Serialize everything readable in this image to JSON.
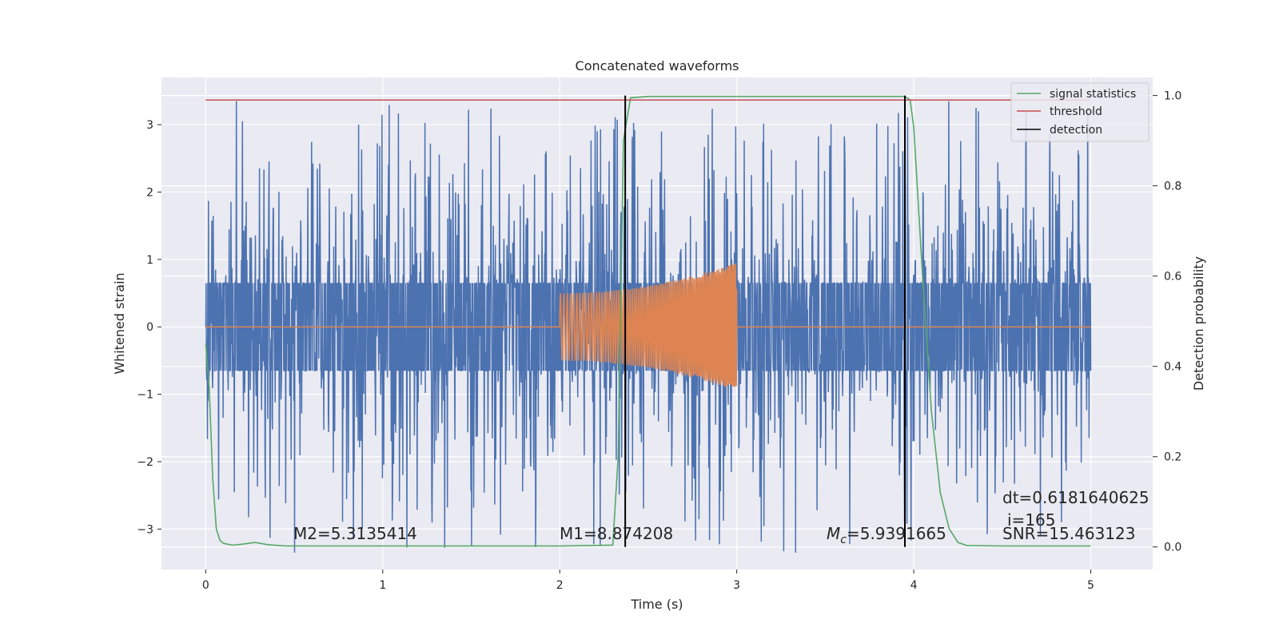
{
  "chart_data": {
    "type": "line",
    "title": "Concatenated waveforms",
    "xlabel": "Time (s)",
    "ylabel": "Whitened strain",
    "ylabel_right": "Detection probability",
    "xlim": [
      -0.25,
      5.35
    ],
    "ylim": [
      -3.6,
      3.7
    ],
    "ylim_right": [
      -0.05,
      1.04
    ],
    "x_ticks": [
      0,
      1,
      2,
      3,
      4,
      5
    ],
    "x_tick_labels": [
      "0",
      "1",
      "2",
      "3",
      "4",
      "5"
    ],
    "y_ticks": [
      -3,
      -2,
      -1,
      0,
      1,
      2,
      3
    ],
    "y_tick_labels": [
      "−3",
      "−2",
      "−1",
      "0",
      "1",
      "2",
      "3"
    ],
    "y_right_ticks": [
      0.0,
      0.2,
      0.4,
      0.6,
      0.8,
      1.0
    ],
    "y_right_tick_labels": [
      "0.0",
      "0.2",
      "0.4",
      "0.6",
      "0.8",
      "1.0"
    ],
    "grid": true,
    "legend_position": "top-right",
    "colors": {
      "background": "#eaeaf2",
      "grid": "#ffffff",
      "strain": "#4c72b0",
      "template": "#dd8452",
      "signal_statistics": "#55a868",
      "threshold": "#c44e52",
      "detection": "#000000"
    },
    "series": [
      {
        "name": "",
        "axis": "left",
        "description_values": "whitened noisy strain",
        "x_range": [
          0,
          5
        ],
        "core_amplitude": 0.65,
        "peak_amplitude": 3.35
      },
      {
        "name": "",
        "axis": "left",
        "x_range": [
          0,
          5
        ],
        "chirp_start": 2.0,
        "chirp_end": 3.0,
        "amplitude_start": 0.5,
        "amplitude_end": 0.95
      },
      {
        "name": "signal statistics",
        "axis": "right",
        "x": [
          0,
          0.02,
          0.04,
          0.06,
          0.08,
          0.1,
          0.15,
          0.2,
          0.28,
          0.35,
          0.45,
          1.0,
          2.0,
          2.3,
          2.33,
          2.36,
          2.4,
          2.5,
          3.0,
          3.5,
          3.95,
          3.98,
          4.0,
          4.05,
          4.1,
          4.15,
          4.2,
          4.25,
          4.3,
          4.5,
          5.0
        ],
        "y": [
          0.45,
          0.35,
          0.15,
          0.04,
          0.015,
          0.008,
          0.004,
          0.006,
          0.01,
          0.005,
          0.002,
          0.002,
          0.002,
          0.004,
          0.2,
          0.9,
          0.995,
          0.998,
          0.998,
          0.998,
          0.998,
          0.99,
          0.93,
          0.6,
          0.3,
          0.12,
          0.04,
          0.01,
          0.003,
          0.002,
          0.002
        ]
      },
      {
        "name": "threshold",
        "axis": "right",
        "x": [
          0,
          5
        ],
        "y": [
          0.99,
          0.99
        ]
      },
      {
        "name": "detection",
        "axis": "right",
        "vlines_x": [
          2.37,
          3.95
        ],
        "y_range": [
          0.0,
          1.0
        ]
      }
    ],
    "annotations": {
      "m2": "M2=5.3135414",
      "m1": "M1=8.874208",
      "mc_symbol": "M",
      "mc_subscript": "c",
      "mc_value": "=5.9391665",
      "dt": "dt=0.6181640625",
      "i": "i=165",
      "snr": "SNR=15.463123"
    }
  }
}
